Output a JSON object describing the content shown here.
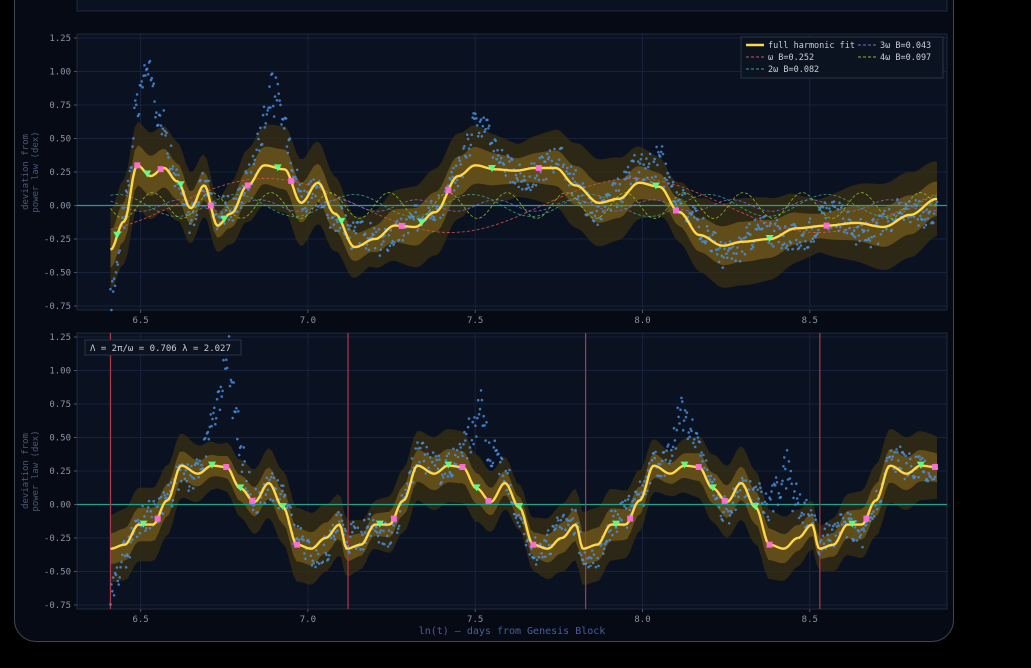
{
  "chart_data": [
    {
      "type": "line",
      "panel": "top",
      "xlabel": "",
      "ylabel": "deviation from power law (dex)",
      "xlim": [
        6.31,
        8.91
      ],
      "ylim": [
        -0.78,
        1.28
      ],
      "xticks": [
        "6.5",
        "7.0",
        "7.5",
        "8.0",
        "8.5"
      ],
      "yticks": [
        "1.25",
        "1.00",
        "0.75",
        "0.50",
        "0.25",
        "0.00",
        "-0.25",
        "-0.50",
        "-0.75"
      ],
      "grid": true,
      "legend_position": "top-right",
      "legend": [
        "full harmonic fit",
        "ω  B=0.252",
        "2ω  B=0.082",
        "3ω  B=0.043",
        "4ω  B=0.097"
      ],
      "harmonics": [
        {
          "name": "ω",
          "B": 0.252,
          "color": "#d9534f"
        },
        {
          "name": "2ω",
          "B": 0.082,
          "color": "#3fa38a"
        },
        {
          "name": "3ω",
          "B": 0.043,
          "color": "#7c6bd6"
        },
        {
          "name": "4ω",
          "B": 0.097,
          "color": "#8fbf2a"
        }
      ],
      "fit_x": [
        6.41,
        6.45,
        6.49,
        6.53,
        6.57,
        6.61,
        6.65,
        6.69,
        6.73,
        6.77,
        6.82,
        6.87,
        6.93,
        6.98,
        7.03,
        7.08,
        7.14,
        7.2,
        7.26,
        7.32,
        7.38,
        7.45,
        7.5,
        7.56,
        7.62,
        7.68,
        7.74,
        7.8,
        7.87,
        7.93,
        7.99,
        8.05,
        8.11,
        8.17,
        8.24,
        8.3,
        8.38,
        8.46,
        8.55,
        8.64,
        8.72,
        8.8,
        8.88
      ],
      "fit_y": [
        -0.33,
        -0.12,
        0.3,
        0.22,
        0.28,
        0.18,
        -0.02,
        0.15,
        -0.15,
        -0.06,
        0.15,
        0.3,
        0.27,
        0.02,
        0.17,
        -0.06,
        -0.31,
        -0.25,
        -0.15,
        -0.16,
        -0.05,
        0.22,
        0.3,
        0.27,
        0.26,
        0.28,
        0.28,
        0.15,
        0.02,
        0.05,
        0.17,
        0.14,
        -0.05,
        -0.22,
        -0.3,
        -0.27,
        -0.25,
        -0.17,
        -0.15,
        -0.13,
        -0.16,
        -0.07,
        0.05
      ],
      "band_inner": 0.12,
      "band_outer": 0.26,
      "residual_peaks": [
        [
          6.52,
          1.17
        ],
        [
          6.89,
          1.06
        ],
        [
          7.5,
          0.77
        ],
        [
          8.05,
          0.5
        ]
      ],
      "markers": [
        6.43,
        6.49,
        6.52,
        6.56,
        6.62,
        6.71,
        6.75,
        6.82,
        6.91,
        6.95,
        7.1,
        7.28,
        7.34,
        7.42,
        7.55,
        7.69,
        8.04,
        8.1,
        8.38,
        8.55
      ]
    },
    {
      "type": "line",
      "panel": "bottom",
      "xlabel": "ln(t)  —  days from Genesis Block",
      "ylabel": "deviation from power law (dex)",
      "xlim": [
        6.31,
        8.91
      ],
      "ylim": [
        -0.78,
        1.28
      ],
      "xticks": [
        "6.5",
        "7.0",
        "7.5",
        "8.0",
        "8.5"
      ],
      "yticks": [
        "1.25",
        "1.00",
        "0.75",
        "0.50",
        "0.25",
        "0.00",
        "-0.25",
        "-0.50",
        "-0.75"
      ],
      "grid": true,
      "annotation": "Λ = 2π/ω = 0.706   λ = 2.027",
      "cycle_lines_x": [
        6.41,
        7.12,
        7.83,
        8.53
      ],
      "cycle_period": 0.706,
      "cycle_start": 6.41,
      "fit_cycle_phase": [
        0.0,
        0.06,
        0.12,
        0.18,
        0.24,
        0.3,
        0.37,
        0.43,
        0.49,
        0.55,
        0.61,
        0.67,
        0.73,
        0.79,
        0.85,
        0.91,
        0.97,
        1.0
      ],
      "fit_cycle_y": [
        -0.33,
        -0.3,
        -0.15,
        -0.15,
        0.03,
        0.29,
        0.23,
        0.29,
        0.28,
        0.12,
        0.02,
        0.16,
        -0.02,
        -0.3,
        -0.33,
        -0.25,
        -0.15,
        -0.33
      ],
      "band_inner": 0.1,
      "band_outer": 0.22,
      "residual_peaks": [
        [
          6.76,
          1.19
        ],
        [
          7.51,
          0.86
        ],
        [
          8.11,
          0.75
        ],
        [
          8.43,
          0.53
        ]
      ],
      "markers_phase": [
        0.14,
        0.2,
        0.43,
        0.49,
        0.55,
        0.6,
        0.73,
        0.79
      ]
    }
  ],
  "colors": {
    "fit": "#ffd84a",
    "band_inner": "#8a6b1e",
    "band_outer": "#3a3012",
    "residuals": "#4a90e2",
    "zero_line": "#1fa38a",
    "cycle_line": "#b0384a",
    "marker_up": "#5cff8a",
    "marker_down": "#ff6bd6"
  }
}
